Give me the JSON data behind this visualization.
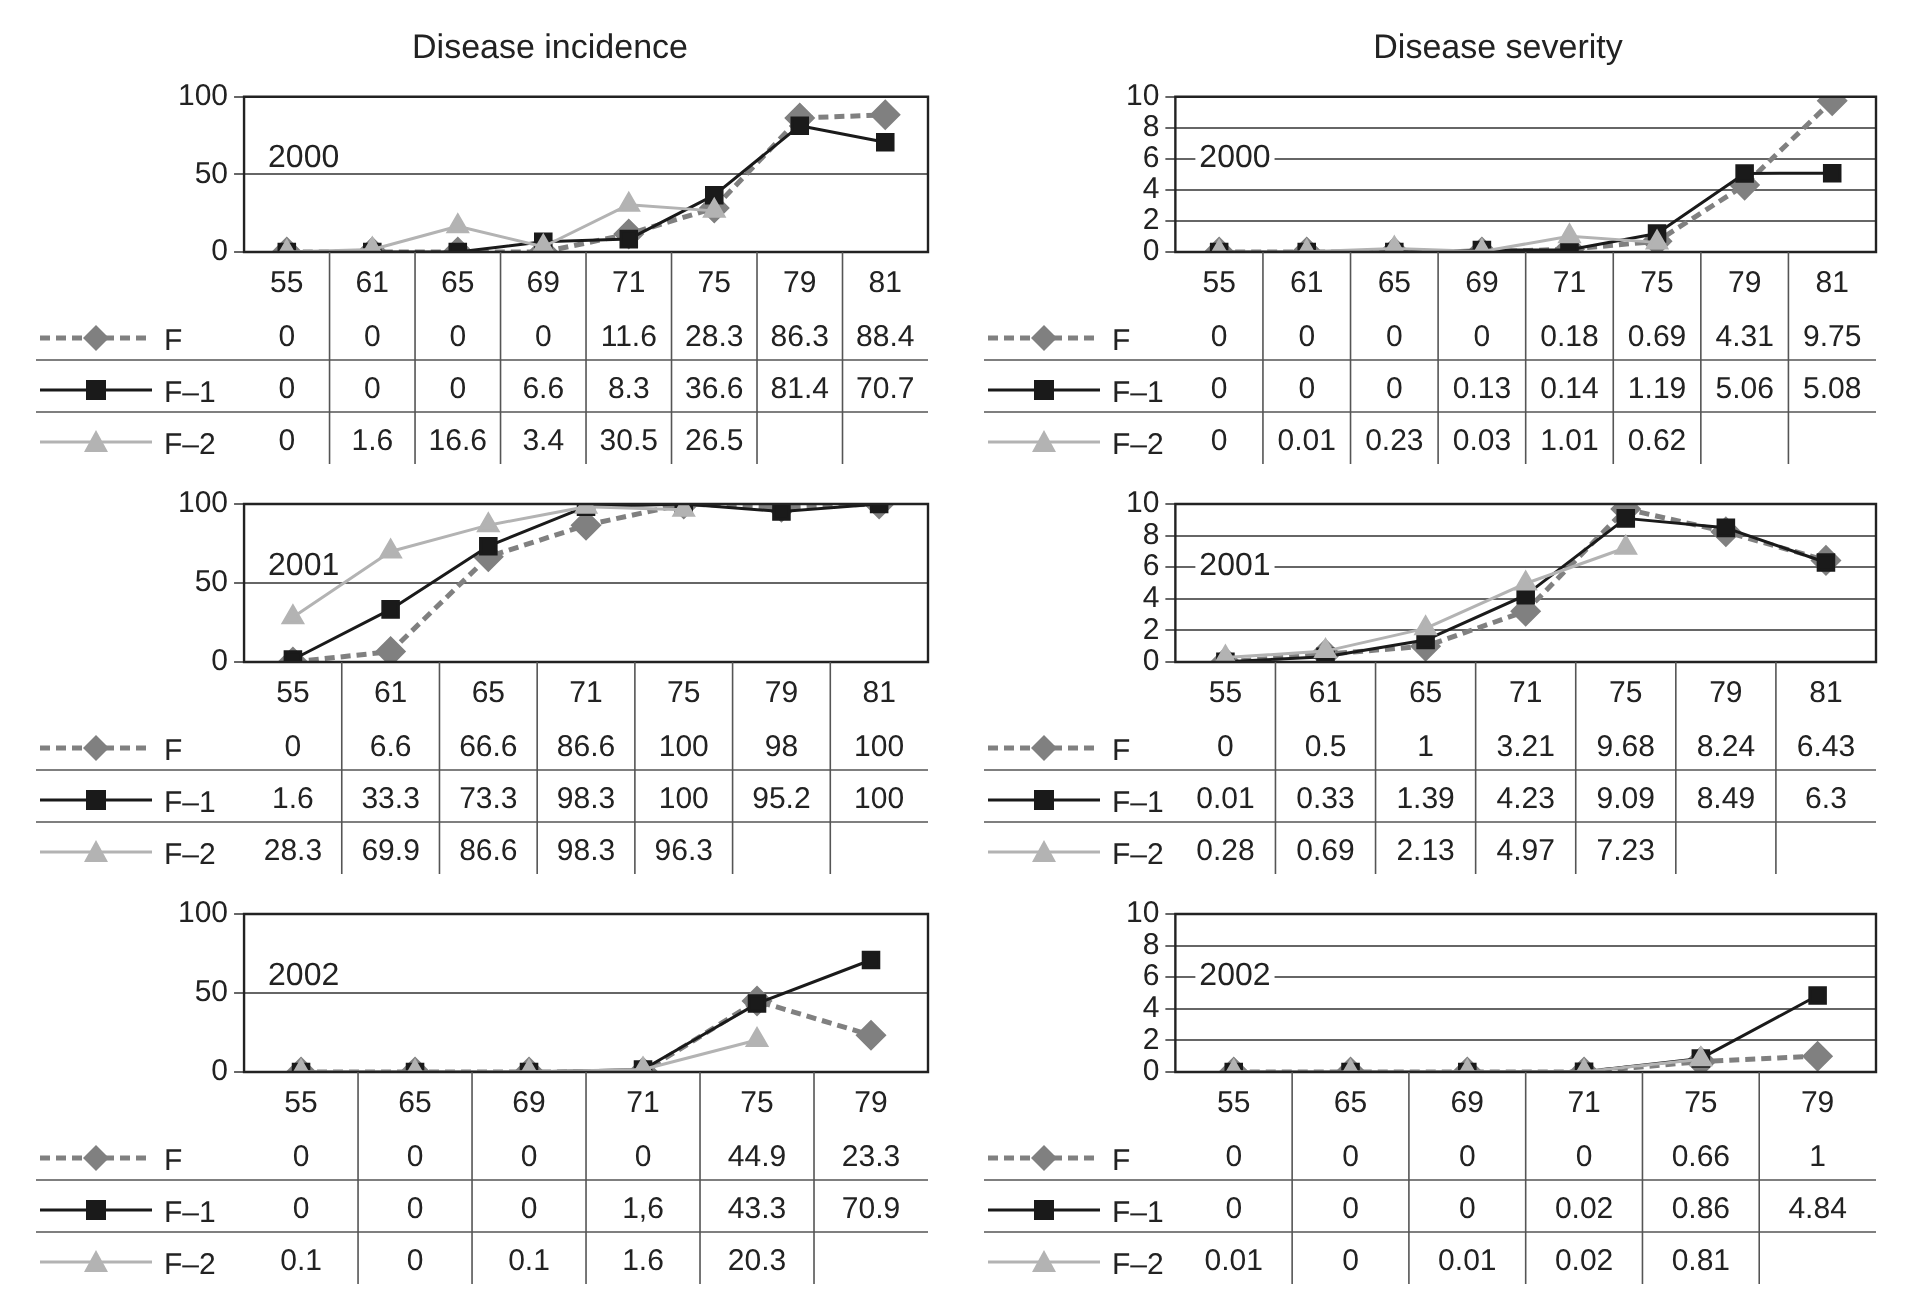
{
  "chart_data": [
    {
      "type": "line",
      "title": "Disease incidence",
      "categories": [
        "55",
        "61",
        "65",
        "69",
        "71",
        "75",
        "79",
        "81"
      ],
      "ylim": [
        0,
        100
      ],
      "yticks": [
        0,
        50,
        100
      ],
      "grid": "y",
      "legend": "bottom left",
      "data_labels": true,
      "annotations": [
        "2000"
      ],
      "series": [
        {
          "name": "F",
          "color": "#808080",
          "marker": "diamond",
          "line_style": "dashed",
          "values": [
            0,
            0,
            0,
            0,
            11.6,
            28.3,
            86.3,
            88.4
          ]
        },
        {
          "name": "F–1",
          "color": "#1a1a1a",
          "marker": "square",
          "line_style": "solid",
          "values": [
            0,
            0,
            0,
            6.6,
            8.3,
            36.6,
            81.4,
            70.7
          ]
        },
        {
          "name": "F–2",
          "color": "#b3b3b3",
          "marker": "triangle",
          "line_style": "solid",
          "values": [
            0,
            1.6,
            16.6,
            3.4,
            30.5,
            26.5,
            null,
            null
          ]
        }
      ]
    },
    {
      "type": "line",
      "title": "Disease severity",
      "categories": [
        "55",
        "61",
        "65",
        "69",
        "71",
        "75",
        "79",
        "81"
      ],
      "ylim": [
        0,
        10
      ],
      "yticks": [
        0,
        2,
        4,
        6,
        8,
        10
      ],
      "grid": "y",
      "legend": "bottom left",
      "data_labels": true,
      "annotations": [
        "2000"
      ],
      "series": [
        {
          "name": "F",
          "color": "#808080",
          "marker": "diamond",
          "line_style": "dashed",
          "values": [
            0,
            0,
            0,
            0,
            0.18,
            0.69,
            4.31,
            9.75
          ]
        },
        {
          "name": "F–1",
          "color": "#1a1a1a",
          "marker": "square",
          "line_style": "solid",
          "values": [
            0,
            0,
            0,
            0.13,
            0.14,
            1.19,
            5.06,
            5.08
          ]
        },
        {
          "name": "F–2",
          "color": "#b3b3b3",
          "marker": "triangle",
          "line_style": "solid",
          "values": [
            0,
            0.01,
            0.23,
            0.03,
            1.01,
            0.62,
            null,
            null
          ]
        }
      ]
    },
    {
      "type": "line",
      "categories": [
        "55",
        "61",
        "65",
        "71",
        "75",
        "79",
        "81"
      ],
      "ylim": [
        0,
        100
      ],
      "yticks": [
        0,
        50,
        100
      ],
      "grid": "y",
      "legend": "bottom left",
      "data_labels": true,
      "annotations": [
        "2001"
      ],
      "series": [
        {
          "name": "F",
          "color": "#808080",
          "marker": "diamond",
          "line_style": "dashed",
          "values": [
            0,
            6.6,
            66.6,
            86.6,
            100,
            98,
            100
          ]
        },
        {
          "name": "F–1",
          "color": "#1a1a1a",
          "marker": "square",
          "line_style": "solid",
          "values": [
            1.6,
            33.3,
            73.3,
            98.3,
            100,
            95.2,
            100
          ]
        },
        {
          "name": "F–2",
          "color": "#b3b3b3",
          "marker": "triangle",
          "line_style": "solid",
          "values": [
            28.3,
            69.9,
            86.6,
            98.3,
            96.3,
            null,
            null
          ]
        }
      ]
    },
    {
      "type": "line",
      "categories": [
        "55",
        "61",
        "65",
        "71",
        "75",
        "79",
        "81"
      ],
      "ylim": [
        0,
        10
      ],
      "yticks": [
        0,
        2,
        4,
        6,
        8,
        10
      ],
      "grid": "y",
      "legend": "bottom left",
      "data_labels": true,
      "annotations": [
        "2001"
      ],
      "series": [
        {
          "name": "F",
          "color": "#808080",
          "marker": "diamond",
          "line_style": "dashed",
          "values": [
            0,
            0.5,
            1,
            3.21,
            9.68,
            8.24,
            6.43
          ]
        },
        {
          "name": "F–1",
          "color": "#1a1a1a",
          "marker": "square",
          "line_style": "solid",
          "values": [
            0.01,
            0.33,
            1.39,
            4.23,
            9.09,
            8.49,
            6.3
          ]
        },
        {
          "name": "F–2",
          "color": "#b3b3b3",
          "marker": "triangle",
          "line_style": "solid",
          "values": [
            0.28,
            0.69,
            2.13,
            4.97,
            7.23,
            null,
            null
          ]
        }
      ]
    },
    {
      "type": "line",
      "categories": [
        "55",
        "65",
        "69",
        "71",
        "75",
        "79"
      ],
      "ylim": [
        0,
        100
      ],
      "yticks": [
        0,
        50,
        100
      ],
      "grid": "y",
      "legend": "bottom left",
      "data_labels": true,
      "annotations": [
        "2002"
      ],
      "series": [
        {
          "name": "F",
          "color": "#808080",
          "marker": "diamond",
          "line_style": "dashed",
          "values": [
            0,
            0,
            0,
            0,
            44.9,
            23.3
          ]
        },
        {
          "name": "F–1",
          "color": "#1a1a1a",
          "marker": "square",
          "line_style": "solid",
          "values": [
            0,
            0,
            0,
            1.6,
            43.3,
            70.9
          ],
          "value_labels": [
            "0",
            "0",
            "0",
            "1,6",
            "43.3",
            "70.9"
          ]
        },
        {
          "name": "F–2",
          "color": "#b3b3b3",
          "marker": "triangle",
          "line_style": "solid",
          "values": [
            0.1,
            0,
            0.1,
            1.6,
            20.3,
            null
          ]
        }
      ]
    },
    {
      "type": "line",
      "categories": [
        "55",
        "65",
        "69",
        "71",
        "75",
        "79"
      ],
      "ylim": [
        0,
        10
      ],
      "yticks": [
        0,
        2,
        4,
        6,
        8,
        10
      ],
      "grid": "y",
      "legend": "bottom left",
      "data_labels": true,
      "annotations": [
        "2002"
      ],
      "series": [
        {
          "name": "F",
          "color": "#808080",
          "marker": "diamond",
          "line_style": "dashed",
          "values": [
            0,
            0,
            0,
            0,
            0.66,
            1
          ]
        },
        {
          "name": "F–1",
          "color": "#1a1a1a",
          "marker": "square",
          "line_style": "solid",
          "values": [
            0,
            0,
            0,
            0.02,
            0.86,
            4.84
          ]
        },
        {
          "name": "F–2",
          "color": "#b3b3b3",
          "marker": "triangle",
          "line_style": "solid",
          "values": [
            0.01,
            0,
            0.01,
            0.02,
            0.81,
            null
          ]
        }
      ]
    }
  ]
}
